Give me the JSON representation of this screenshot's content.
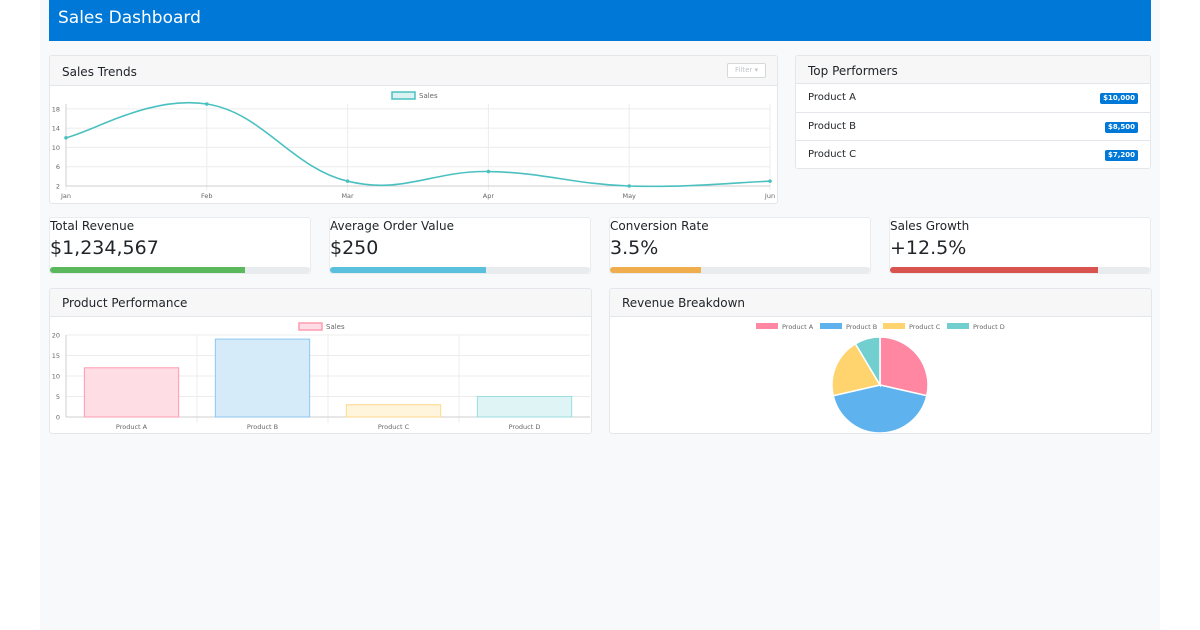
{
  "header": {
    "title": "Sales Dashboard"
  },
  "sales_trends": {
    "title": "Sales Trends",
    "filter_label": "Filter",
    "chart_data": {
      "type": "line",
      "categories": [
        "Jan",
        "Feb",
        "Mar",
        "Apr",
        "May",
        "Jun"
      ],
      "series": [
        {
          "name": "Sales",
          "values": [
            12,
            19,
            3,
            5,
            2,
            3
          ]
        }
      ],
      "yticks": [
        2,
        6,
        10,
        14,
        18
      ],
      "ylim": [
        2,
        19
      ],
      "color": "#4bc0c0",
      "grid": true,
      "legend": "top"
    }
  },
  "top_performers": {
    "title": "Top Performers",
    "items": [
      {
        "name": "Product A",
        "value": "$10,000"
      },
      {
        "name": "Product B",
        "value": "$8,500"
      },
      {
        "name": "Product C",
        "value": "$7,200"
      }
    ]
  },
  "stats": [
    {
      "label": "Total Revenue",
      "value": "$1,234,567",
      "progress": 75,
      "color": "#5cb85c"
    },
    {
      "label": "Average Order Value",
      "value": "$250",
      "progress": 60,
      "color": "#5bc0de"
    },
    {
      "label": "Conversion Rate",
      "value": "3.5%",
      "progress": 35,
      "color": "#f0ad4e"
    },
    {
      "label": "Sales Growth",
      "value": "+12.5%",
      "progress": 80,
      "color": "#d9534f"
    }
  ],
  "product_performance": {
    "title": "Product Performance",
    "chart_data": {
      "type": "bar",
      "categories": [
        "Product A",
        "Product B",
        "Product C",
        "Product D"
      ],
      "series": [
        {
          "name": "Sales",
          "values": [
            12,
            19,
            3,
            5
          ]
        }
      ],
      "yticks": [
        0,
        5,
        10,
        15,
        20
      ],
      "ylim": [
        0,
        20
      ],
      "fills": [
        "#ffdde4",
        "#d6ebfa",
        "#fff4dc",
        "#dff4f4"
      ],
      "strokes": [
        "#ff9bb1",
        "#8dc6ee",
        "#ffd98c",
        "#9bdcdc"
      ],
      "grid": true,
      "legend": "top"
    }
  },
  "revenue_breakdown": {
    "title": "Revenue Breakdown",
    "chart_data": {
      "type": "pie",
      "categories": [
        "Product A",
        "Product B",
        "Product C",
        "Product D"
      ],
      "values": [
        10,
        15,
        7,
        3
      ],
      "colors": [
        "#ff87a2",
        "#5eb3ee",
        "#ffd46e",
        "#72cfcf"
      ],
      "legend": "top"
    }
  }
}
